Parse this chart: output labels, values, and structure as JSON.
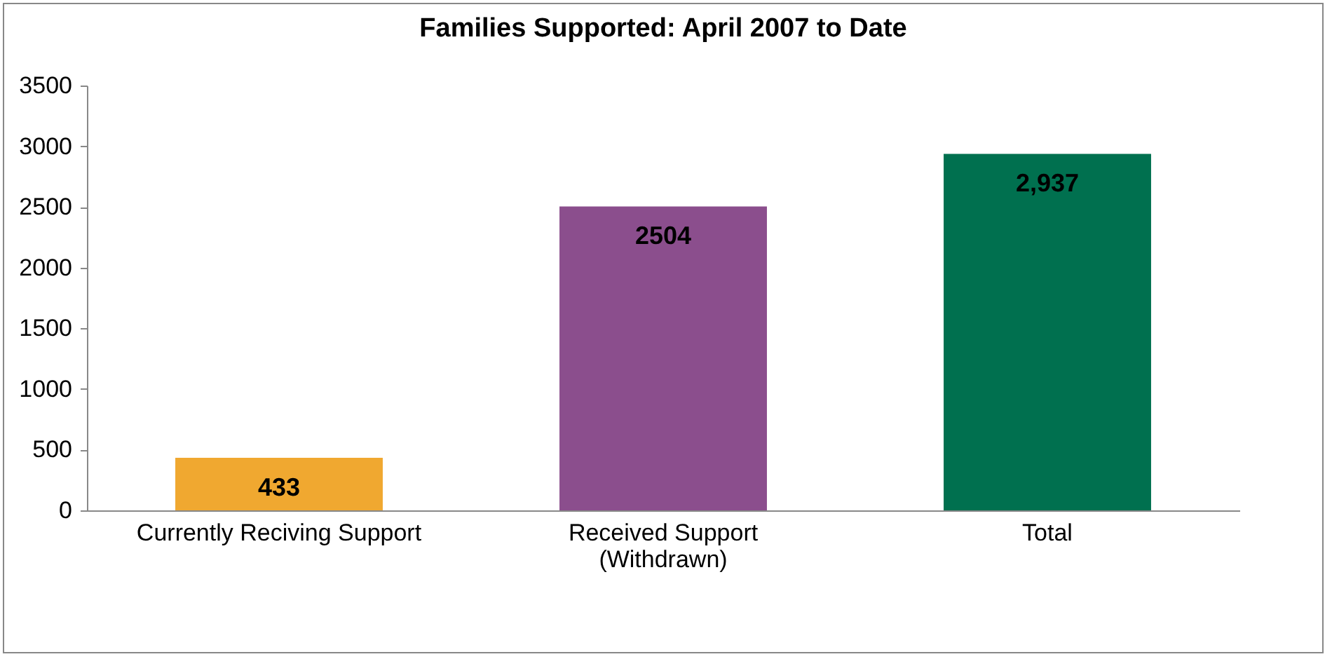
{
  "chart_data": {
    "type": "bar",
    "title": "Families Supported: April 2007 to Date",
    "categories": [
      "Currently Reciving Support",
      "Received Support (Withdrawn)",
      "Total"
    ],
    "values": [
      433,
      2504,
      2937
    ],
    "colors": [
      "#f0a830",
      "#8b4e8d",
      "#00704f"
    ],
    "value_labels": [
      "433",
      "2504",
      "2,937"
    ],
    "ylim": [
      0,
      3500
    ],
    "yticks": [
      0,
      500,
      1000,
      1500,
      2000,
      2500,
      3000,
      3500
    ],
    "grid": false
  }
}
